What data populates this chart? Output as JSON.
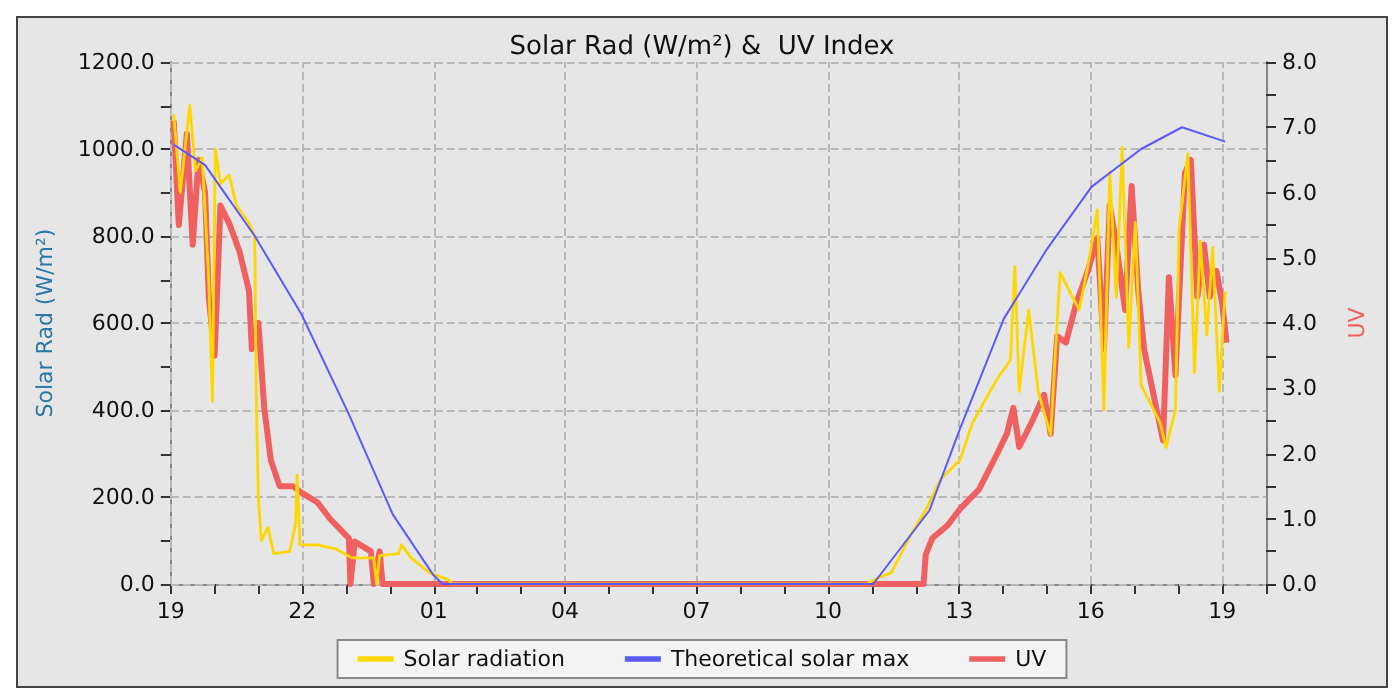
{
  "chart_data": {
    "type": "line",
    "title": "Solar Rad (W/m²) &  UV Index",
    "ylabel": "Solar Rad (W/m²)",
    "y2label": "UV",
    "xlim": [
      "--01-01T19:00",
      "--01-02T20:00"
    ],
    "xticks": [
      {
        "value": "--01-01T19:00",
        "label": "19"
      },
      {
        "value": "--01-01T20:00",
        "label": null
      },
      {
        "value": "--01-01T21:00",
        "label": null
      },
      {
        "value": "--01-01T22:00",
        "label": "22"
      },
      {
        "value": "--01-01T23:00",
        "label": null
      },
      {
        "value": "--01-02T00:00",
        "label": null
      },
      {
        "value": "--01-02T01:00",
        "label": "01"
      },
      {
        "value": "--01-02T02:00",
        "label": null
      },
      {
        "value": "--01-02T03:00",
        "label": null
      },
      {
        "value": "--01-02T04:00",
        "label": "04"
      },
      {
        "value": "--01-02T05:00",
        "label": null
      },
      {
        "value": "--01-02T06:00",
        "label": null
      },
      {
        "value": "--01-02T07:00",
        "label": "07"
      },
      {
        "value": "--01-02T08:00",
        "label": null
      },
      {
        "value": "--01-02T09:00",
        "label": null
      },
      {
        "value": "--01-02T10:00",
        "label": "10"
      },
      {
        "value": "--01-02T11:00",
        "label": null
      },
      {
        "value": "--01-02T12:00",
        "label": null
      },
      {
        "value": "--01-02T13:00",
        "label": "13"
      },
      {
        "value": "--01-02T14:00",
        "label": null
      },
      {
        "value": "--01-02T15:00",
        "label": null
      },
      {
        "value": "--01-02T16:00",
        "label": "16"
      },
      {
        "value": "--01-02T17:00",
        "label": null
      },
      {
        "value": "--01-02T18:00",
        "label": null
      },
      {
        "value": "--01-02T19:00",
        "label": "19"
      },
      {
        "value": "--01-02T20:00",
        "label": null
      }
    ],
    "ylim": [
      0,
      1200
    ],
    "yticks": [
      {
        "value": 0,
        "label": "0.0"
      },
      {
        "value": 100,
        "label": null
      },
      {
        "value": 200,
        "label": "200.0"
      },
      {
        "value": 300,
        "label": null
      },
      {
        "value": 400,
        "label": "400.0"
      },
      {
        "value": 500,
        "label": null
      },
      {
        "value": 600,
        "label": "600.0"
      },
      {
        "value": 700,
        "label": null
      },
      {
        "value": 800,
        "label": "800.0"
      },
      {
        "value": 900,
        "label": null
      },
      {
        "value": 1000,
        "label": "1000.0"
      },
      {
        "value": 1100,
        "label": null
      },
      {
        "value": 1200,
        "label": "1200.0"
      }
    ],
    "y2lim": [
      0,
      8
    ],
    "y2ticks": [
      {
        "value": 0,
        "label": "0.0"
      },
      {
        "value": 0.5,
        "label": null
      },
      {
        "value": 1,
        "label": "1.0"
      },
      {
        "value": 1.5,
        "label": null
      },
      {
        "value": 2,
        "label": "2.0"
      },
      {
        "value": 2.5,
        "label": null
      },
      {
        "value": 3,
        "label": "3.0"
      },
      {
        "value": 3.5,
        "label": null
      },
      {
        "value": 4,
        "label": "4.0"
      },
      {
        "value": 4.5,
        "label": null
      },
      {
        "value": 5,
        "label": "5.0"
      },
      {
        "value": 5.5,
        "label": null
      },
      {
        "value": 6,
        "label": "6.0"
      },
      {
        "value": 6.5,
        "label": null
      },
      {
        "value": 7,
        "label": "7.0"
      },
      {
        "value": 7.5,
        "label": null
      },
      {
        "value": 8,
        "label": "8.0"
      }
    ],
    "grid": true,
    "legend": "bottom",
    "marker": "none",
    "line_style": "solid",
    "series": [
      {
        "name": "Solar radiation",
        "color": "#ffd700",
        "x": [
          "--01-01T19:04",
          "--01-01T19:13",
          "--01-01T19:26",
          "--01-01T19:34",
          "--01-01T19:43",
          "--01-01T19:52",
          "--01-01T19:57",
          "--01-01T20:01",
          "--01-01T20:08",
          "--01-01T20:20",
          "--01-01T20:30",
          "--01-01T20:47",
          "--01-01T20:55",
          "--01-01T20:57",
          "--01-01T21:00",
          "--01-01T21:04",
          "--01-01T21:13",
          "--01-01T21:21",
          "--01-01T21:43",
          "--01-01T21:51",
          "--01-01T21:53",
          "--01-01T21:57",
          "--01-01T22:21",
          "--01-01T22:47",
          "--01-01T23:08",
          "--01-01T23:38",
          "--01-01T23:42",
          "--01-01T23:46",
          "--01-02T00:12",
          "--01-02T00:16",
          "--01-02T00:29",
          "--01-02T00:55",
          "--01-02T01:20",
          "--01-02T01:25",
          "--01-02T10:53",
          "--01-02T11:10",
          "--01-02T11:27",
          "--01-02T11:53",
          "--01-02T12:14",
          "--01-02T12:35",
          "--01-02T13:01",
          "--01-02T13:18",
          "--01-02T13:52",
          "--01-02T14:10",
          "--01-02T14:16",
          "--01-02T14:22",
          "--01-02T14:35",
          "--01-02T14:48",
          "--01-02T15:05",
          "--01-02T15:18",
          "--01-02T15:31",
          "--01-02T15:44",
          "--01-02T15:56",
          "--01-02T16:09",
          "--01-02T16:18",
          "--01-02T16:26",
          "--01-02T16:35",
          "--01-02T16:43",
          "--01-02T16:52",
          "--01-02T17:01",
          "--01-02T17:09",
          "--01-02T17:22",
          "--01-02T17:35",
          "--01-02T17:43",
          "--01-02T17:56",
          "--01-02T18:01",
          "--01-02T18:13",
          "--01-02T18:22",
          "--01-02T18:30",
          "--01-02T18:39",
          "--01-02T18:47",
          "--01-02T18:56",
          "--01-02T19:04"
        ],
        "values": [
          1080,
          900,
          1100,
          950,
          980,
          700,
          420,
          1000,
          920,
          940,
          870,
          830,
          800,
          430,
          200,
          100,
          130,
          70,
          75,
          140,
          250,
          90,
          90,
          80,
          60,
          60,
          0,
          65,
          70,
          90,
          60,
          25,
          10,
          0,
          0,
          15,
          26,
          112,
          170,
          242,
          285,
          371,
          472,
          515,
          730,
          443,
          630,
          443,
          342,
          716,
          673,
          630,
          730,
          860,
          400,
          946,
          659,
          1004,
          544,
          831,
          457,
          414,
          371,
          314,
          400,
          817,
          989,
          486,
          788,
          572,
          774,
          443,
          673
        ]
      },
      {
        "name": "Theoretical solar max",
        "color": "#5a5aff",
        "x": [
          "--01-01T19:04",
          "--01-01T19:47",
          "--01-01T20:55",
          "--01-01T21:59",
          "--01-01T23:04",
          "--01-02T00:04",
          "--01-02T00:59",
          "--01-02T01:12",
          "--01-02T11:02",
          "--01-02T12:19",
          "--01-02T13:01",
          "--01-02T14:01",
          "--01-02T15:00",
          "--01-02T16:01",
          "--01-02T17:09",
          "--01-02T18:05",
          "--01-02T19:04"
        ],
        "values": [
          1010,
          963,
          800,
          620,
          390,
          160,
          22,
          0,
          0,
          169,
          357,
          610,
          770,
          913,
          1000,
          1050,
          1017
        ]
      },
      {
        "name": "UV",
        "color": "#f06060",
        "axis": "y2",
        "x": [
          "--01-01T19:04",
          "--01-01T19:11",
          "--01-01T19:22",
          "--01-01T19:30",
          "--01-01T19:38",
          "--01-01T19:47",
          "--01-01T19:52",
          "--01-01T20:00",
          "--01-01T20:08",
          "--01-01T20:21",
          "--01-01T20:34",
          "--01-01T20:47",
          "--01-01T20:51",
          "--01-01T21:00",
          "--01-01T21:08",
          "--01-01T21:17",
          "--01-01T21:29",
          "--01-01T21:47",
          "--01-01T21:59",
          "--01-01T22:21",
          "--01-01T22:38",
          "--01-01T23:04",
          "--01-01T23:06",
          "--01-01T23:12",
          "--01-01T23:34",
          "--01-01T23:38",
          "--01-01T23:46",
          "--01-01T23:50",
          "--01-02T12:11",
          "--01-02T12:14",
          "--01-02T12:23",
          "--01-02T12:44",
          "--01-02T13:01",
          "--01-02T13:27",
          "--01-02T13:52",
          "--01-02T14:05",
          "--01-02T14:14",
          "--01-02T14:22",
          "--01-02T14:40",
          "--01-02T14:56",
          "--01-02T15:05",
          "--01-02T15:14",
          "--01-02T15:26",
          "--01-02T15:40",
          "--01-02T15:56",
          "--01-02T16:09",
          "--01-02T16:18",
          "--01-02T16:26",
          "--01-02T16:35",
          "--01-02T16:47",
          "--01-02T16:56",
          "--01-02T17:05",
          "--01-02T17:13",
          "--01-02T17:26",
          "--01-02T17:39",
          "--01-02T17:47",
          "--01-02T17:56",
          "--01-02T18:09",
          "--01-02T18:17",
          "--01-02T18:26",
          "--01-02T18:35",
          "--01-02T18:43",
          "--01-02T18:52",
          "--01-02T19:00",
          "--01-02T19:06"
        ],
        "values": [
          7.1,
          5.5,
          6.9,
          5.2,
          6.5,
          6.0,
          4.4,
          3.5,
          5.8,
          5.5,
          5.1,
          4.5,
          3.6,
          4.0,
          2.7,
          1.9,
          1.5,
          1.5,
          1.4,
          1.25,
          1.0,
          0.7,
          0,
          0.65,
          0.5,
          0,
          0.5,
          0,
          0,
          0.45,
          0.7,
          0.9,
          1.15,
          1.45,
          2.0,
          2.3,
          2.7,
          2.1,
          2.5,
          2.9,
          2.3,
          3.8,
          3.7,
          4.3,
          4.8,
          5.3,
          3.6,
          5.8,
          5.2,
          4.2,
          6.1,
          4.5,
          3.6,
          2.9,
          2.2,
          4.7,
          3.2,
          6.3,
          6.5,
          4.4,
          5.2,
          4.4,
          4.8,
          4.3,
          3.7
        ]
      }
    ]
  }
}
